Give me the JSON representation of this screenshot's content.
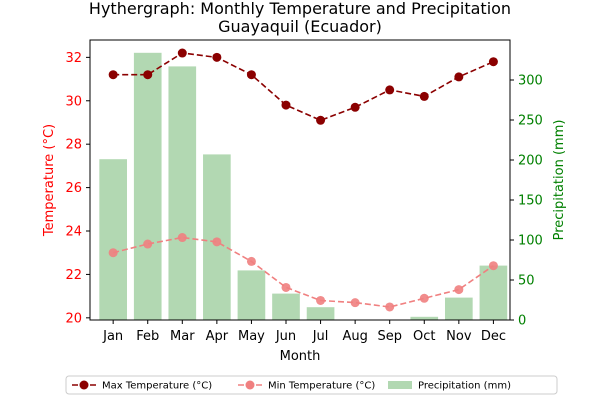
{
  "chart_data": {
    "type": "bar+line",
    "title_line1": "Hythergraph: Monthly Temperature and Precipitation",
    "title_line2": "Guayaquil (Ecuador)",
    "xlabel": "Month",
    "ylabel_left": "Temperature (°C)",
    "ylabel_right": "Precipitation (mm)",
    "categories": [
      "Jan",
      "Feb",
      "Mar",
      "Apr",
      "May",
      "Jun",
      "Jul",
      "Aug",
      "Sep",
      "Oct",
      "Nov",
      "Dec"
    ],
    "ylim_left": [
      19.9,
      32.8
    ],
    "yticks_left": [
      20,
      22,
      24,
      26,
      28,
      30,
      32
    ],
    "ylim_right": [
      0,
      350
    ],
    "yticks_right": [
      0,
      50,
      100,
      150,
      200,
      250,
      300
    ],
    "series": [
      {
        "name": "Max Temperature (°C)",
        "kind": "line",
        "axis": "left",
        "color": "#8b0000",
        "values": [
          31.2,
          31.2,
          32.2,
          32.0,
          31.2,
          29.8,
          29.1,
          29.7,
          30.5,
          30.2,
          31.1,
          31.8
        ]
      },
      {
        "name": "Min Temperature (°C)",
        "kind": "line",
        "axis": "left",
        "color": "#f08080",
        "values": [
          23.0,
          23.4,
          23.7,
          23.5,
          22.6,
          21.4,
          20.8,
          20.7,
          20.5,
          20.9,
          21.3,
          22.4
        ]
      },
      {
        "name": "Precipitation (mm)",
        "kind": "bar",
        "axis": "right",
        "color": "#b2d8b2",
        "values": [
          201,
          334,
          317,
          207,
          62,
          33,
          16,
          0,
          0,
          4,
          28,
          68
        ]
      }
    ],
    "left_axis_color": "#ff0000",
    "right_axis_color": "#008000",
    "grid": false,
    "legend_position": "bottom"
  }
}
